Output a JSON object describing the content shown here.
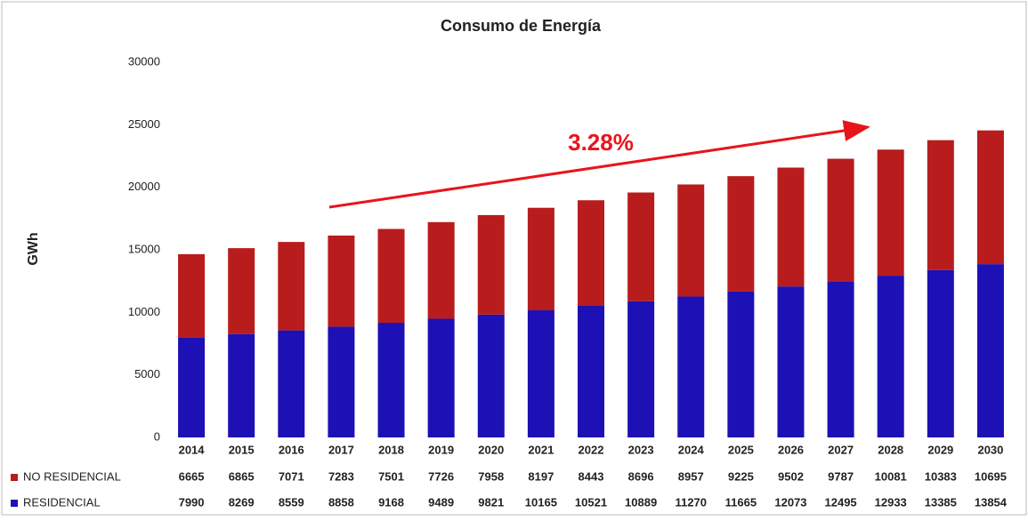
{
  "chart_data": {
    "type": "stacked_bar",
    "title": "Consumo de Energía",
    "y_label": "GWh",
    "annotation": "3.28%",
    "categories": [
      "2014",
      "2015",
      "2016",
      "2017",
      "2018",
      "2019",
      "2020",
      "2021",
      "2022",
      "2023",
      "2024",
      "2025",
      "2026",
      "2027",
      "2028",
      "2029",
      "2030"
    ],
    "series": [
      {
        "name": "NO RESIDENCIAL",
        "color": "#b81c1c",
        "values": [
          6665,
          6865,
          7071,
          7283,
          7501,
          7726,
          7958,
          8197,
          8443,
          8696,
          8957,
          9225,
          9502,
          9787,
          10081,
          10383,
          10695
        ]
      },
      {
        "name": "RESIDENCIAL",
        "color": "#1d10b5",
        "values": [
          7990,
          8269,
          8559,
          8858,
          9168,
          9489,
          9821,
          10165,
          10521,
          10889,
          11270,
          11665,
          12073,
          12495,
          12933,
          13385,
          13854
        ]
      }
    ],
    "ylim": [
      0,
      30000
    ],
    "yticks": [
      0,
      5000,
      10000,
      15000,
      20000,
      25000,
      30000
    ]
  }
}
